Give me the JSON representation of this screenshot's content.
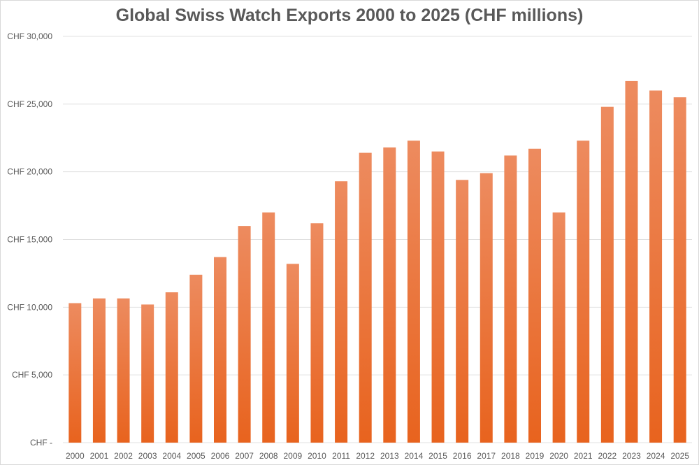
{
  "chart_data": {
    "type": "bar",
    "title": "Global Swiss Watch Exports 2000 to 2025 (CHF millions)",
    "xlabel": "",
    "ylabel": "",
    "categories": [
      "2000",
      "2001",
      "2002",
      "2003",
      "2004",
      "2005",
      "2006",
      "2007",
      "2008",
      "2009",
      "2010",
      "2011",
      "2012",
      "2013",
      "2014",
      "2015",
      "2016",
      "2017",
      "2018",
      "2019",
      "2020",
      "2021",
      "2022",
      "2023",
      "2024",
      "2025"
    ],
    "values": [
      10300,
      10650,
      10650,
      10200,
      11100,
      12400,
      13700,
      16000,
      17000,
      13200,
      16200,
      19300,
      21400,
      21800,
      22300,
      21500,
      19400,
      19900,
      21200,
      21700,
      17000,
      22300,
      24800,
      26700,
      26000,
      25500
    ],
    "ylim": [
      0,
      30000
    ],
    "yticks": [
      0,
      5000,
      10000,
      15000,
      20000,
      25000,
      30000
    ],
    "ytick_labels": [
      "CHF -",
      "CHF 5,000",
      "CHF 10,000",
      "CHF 15,000",
      "CHF 20,000",
      "CHF 25,000",
      "CHF 30,000"
    ],
    "grid": true,
    "legend": "none",
    "colors": {
      "bar_top": "#ED8B5F",
      "bar_bottom": "#E8631E",
      "grid": "#e0e0e0",
      "text": "#595959"
    }
  }
}
